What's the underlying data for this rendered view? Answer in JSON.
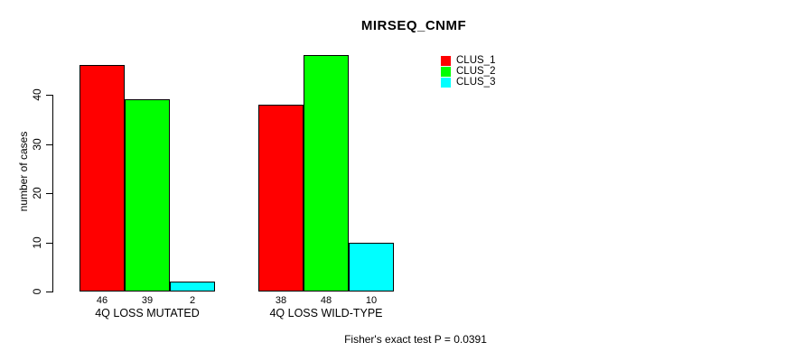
{
  "chart_data": {
    "type": "bar",
    "title": "MIRSEQ_CNMF",
    "ylabel": "number of cases",
    "xlabel": "",
    "categories": [
      "4Q LOSS MUTATED",
      "4Q LOSS WILD-TYPE"
    ],
    "series": [
      {
        "name": "CLUS_1",
        "color": "#ff0000",
        "values": [
          46,
          38
        ]
      },
      {
        "name": "CLUS_2",
        "color": "#00ff00",
        "values": [
          39,
          48
        ]
      },
      {
        "name": "CLUS_3",
        "color": "#00ffff",
        "values": [
          2,
          10
        ]
      }
    ],
    "yticks": [
      0,
      10,
      20,
      30,
      40
    ],
    "ylim": [
      0,
      48
    ],
    "bar_value_labels": [
      [
        46,
        39,
        2
      ],
      [
        38,
        48,
        10
      ]
    ],
    "grid": false,
    "legend_position": "top-right",
    "annotation": "Fisher's exact test P = 0.0391"
  }
}
